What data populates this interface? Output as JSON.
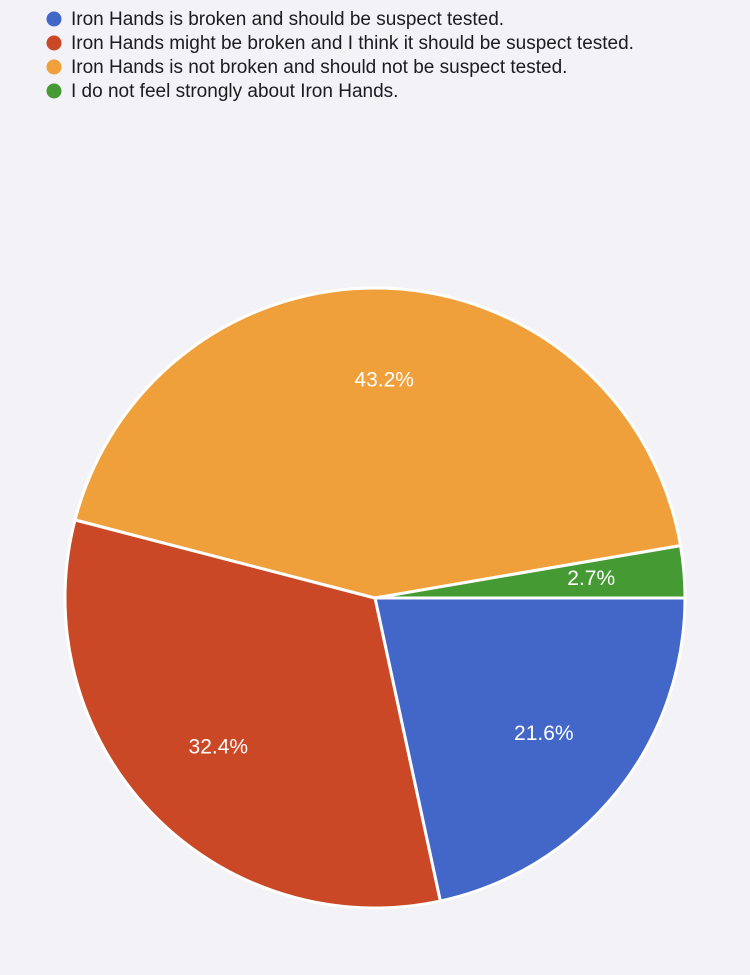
{
  "chart_data": {
    "type": "pie",
    "categories": [
      "Iron Hands is broken and should be suspect tested.",
      "Iron Hands might be broken and I think it should be suspect tested.",
      "Iron Hands is not broken and should not be suspect tested.",
      "I do not feel strongly about Iron Hands."
    ],
    "values": [
      21.6,
      32.4,
      43.2,
      2.7
    ],
    "value_labels": [
      "21.6%",
      "32.4%",
      "43.2%",
      "2.7%"
    ],
    "colors": [
      "#4267c9",
      "#cb4827",
      "#f0a03a",
      "#459a34"
    ]
  }
}
